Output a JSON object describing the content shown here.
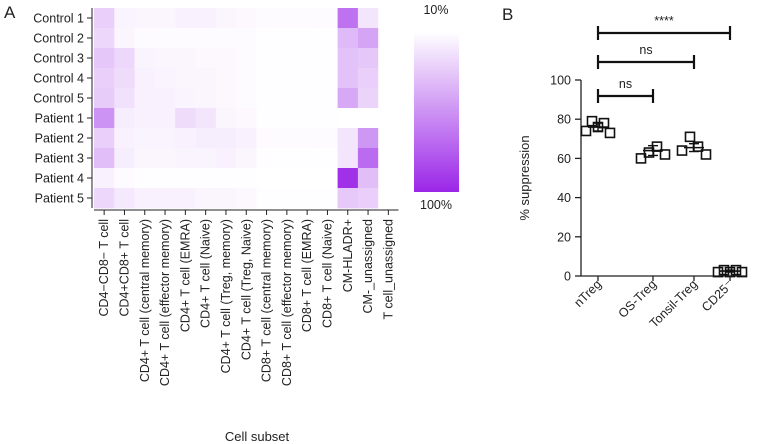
{
  "panels": {
    "a": "A",
    "b": "B"
  },
  "chart_data": [
    {
      "type": "heatmap",
      "rows": [
        "Control 1",
        "Control 2",
        "Control 3",
        "Control 4",
        "Control 5",
        "Patient 1",
        "Patient 2",
        "Patient 3",
        "Patient 4",
        "Patient 5"
      ],
      "columns": [
        "CD4−CD8− T cell",
        "CD4+CD8+ T cell",
        "CD4+ T cell (central memory)",
        "CD4+ T cell (effector memory)",
        "CD4+ T cell (EMRA)",
        "CD4+ T cell (Naive)",
        "CD4+ T cell (Treg, memory)",
        "CD4+ T cell (Treg, Naive)",
        "CD8+ T cell (central memory)",
        "CD8+ T cell (effector memory)",
        "CD8+ T cell (EMRA)",
        "CD8+ T cell (Naive)",
        "CM-HLADR+",
        "CM-_unassigned",
        "T cell_unassigned"
      ],
      "xlabel": "Cell subset",
      "colorbar": {
        "min_label": "10%",
        "max_label": "100%",
        "low_color": "#ffffff",
        "high_color": "#9b26e8"
      },
      "values": [
        [
          0.22,
          0.05,
          0.04,
          0.04,
          0.06,
          0.06,
          0.04,
          0.03,
          0.02,
          0.02,
          0.02,
          0.02,
          0.65,
          0.12,
          0.0
        ],
        [
          0.18,
          0.04,
          0.02,
          0.02,
          0.02,
          0.02,
          0.02,
          0.02,
          0.01,
          0.01,
          0.01,
          0.01,
          0.32,
          0.42,
          0.0
        ],
        [
          0.26,
          0.18,
          0.05,
          0.04,
          0.04,
          0.03,
          0.03,
          0.02,
          0.01,
          0.01,
          0.01,
          0.01,
          0.28,
          0.26,
          0.0
        ],
        [
          0.22,
          0.16,
          0.06,
          0.05,
          0.04,
          0.04,
          0.03,
          0.02,
          0.01,
          0.01,
          0.01,
          0.01,
          0.28,
          0.22,
          0.0
        ],
        [
          0.24,
          0.14,
          0.06,
          0.06,
          0.05,
          0.04,
          0.03,
          0.02,
          0.01,
          0.01,
          0.01,
          0.01,
          0.4,
          0.2,
          0.0
        ],
        [
          0.5,
          0.08,
          0.06,
          0.06,
          0.16,
          0.12,
          0.04,
          0.03,
          0.01,
          0.01,
          0.01,
          0.01,
          0.0,
          0.0,
          0.0
        ],
        [
          0.22,
          0.06,
          0.05,
          0.05,
          0.06,
          0.08,
          0.08,
          0.06,
          0.02,
          0.02,
          0.02,
          0.02,
          0.12,
          0.48,
          0.0
        ],
        [
          0.3,
          0.08,
          0.04,
          0.04,
          0.05,
          0.05,
          0.06,
          0.04,
          0.01,
          0.01,
          0.01,
          0.01,
          0.12,
          0.68,
          0.0
        ],
        [
          0.06,
          0.02,
          0.01,
          0.01,
          0.01,
          0.01,
          0.01,
          0.01,
          0.0,
          0.0,
          0.0,
          0.0,
          0.95,
          0.3,
          0.0
        ],
        [
          0.18,
          0.1,
          0.06,
          0.06,
          0.06,
          0.04,
          0.04,
          0.03,
          0.01,
          0.01,
          0.01,
          0.01,
          0.25,
          0.22,
          0.0
        ]
      ]
    },
    {
      "type": "scatter",
      "categories": [
        "nTreg",
        "OS-Treg",
        "Tonsil-Treg",
        "CD25⁻"
      ],
      "ylabel": "% suppression",
      "ylim": [
        0,
        100
      ],
      "yticks": [
        0,
        20,
        40,
        60,
        80,
        100
      ],
      "points": [
        [
          74,
          79,
          76,
          78,
          73
        ],
        [
          60,
          63,
          66,
          62
        ],
        [
          64,
          71,
          66,
          62
        ],
        [
          2,
          3,
          2,
          3,
          2
        ]
      ],
      "means": [
        76,
        64,
        65.5,
        2.5
      ],
      "errors": [
        2,
        2.5,
        2,
        0.5
      ],
      "marker_color": "#111111",
      "comparisons": [
        {
          "from": "nTreg",
          "to": "CD25⁻",
          "label": "****"
        },
        {
          "from": "nTreg",
          "to": "Tonsil-Treg",
          "label": "ns"
        },
        {
          "from": "nTreg",
          "to": "OS-Treg",
          "label": "ns"
        }
      ]
    }
  ]
}
